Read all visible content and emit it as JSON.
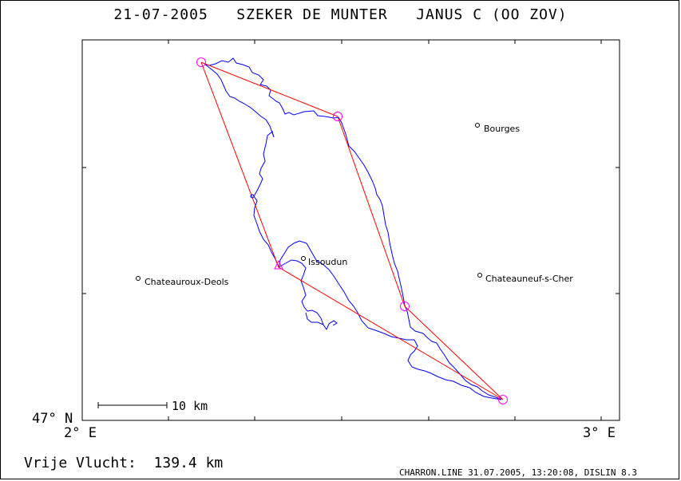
{
  "title": {
    "date": "21-07-2005",
    "glider": "SZEKER DE MUNTER",
    "type": "JANUS C (OO ZOV)"
  },
  "axes": {
    "lat_label": "47° N",
    "lon_left": "2° E",
    "lon_right": "3° E"
  },
  "scale": {
    "label": "10 km"
  },
  "cities": [
    {
      "name": "Bourges"
    },
    {
      "name": "Issoudun"
    },
    {
      "name": "Chateauroux-Deols"
    },
    {
      "name": "Chateauneuf-s-Cher"
    }
  ],
  "footer": {
    "distance": "Vrije Vlucht:  139.4 km",
    "credit": "CHARRON.LINE 31.07.2005, 13:20:08, DISLIN 8.3"
  },
  "colors": {
    "track": "#0000ff",
    "task": "#ff0000",
    "turnpoint": "#ff00ff"
  }
}
